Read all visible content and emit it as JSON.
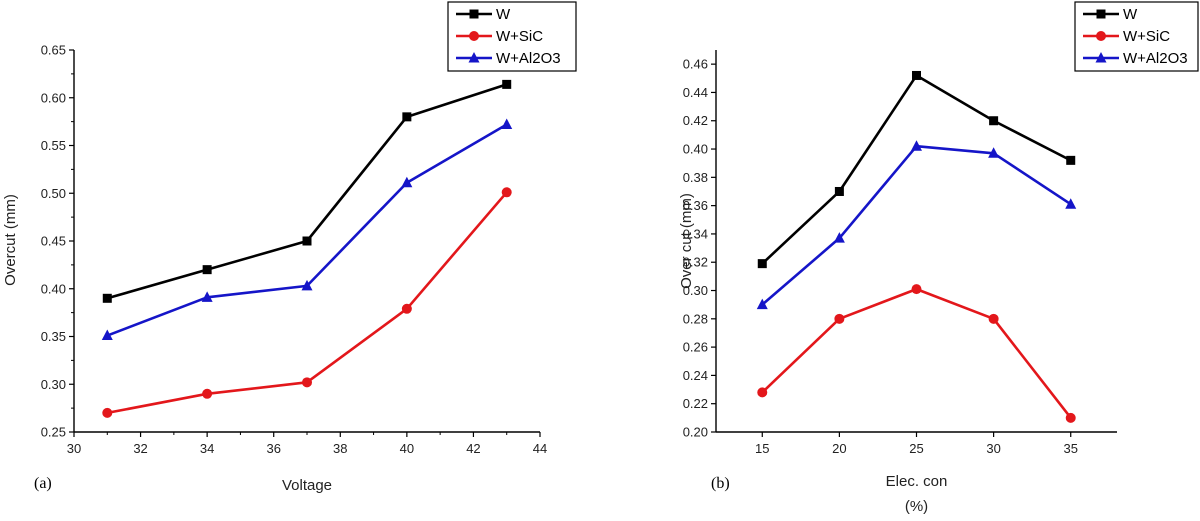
{
  "chart_data": [
    {
      "type": "line",
      "panel_label": "(a)",
      "xlabel": "Voltage",
      "ylabel": "Overcut (mm)",
      "xlim": [
        30,
        44
      ],
      "ylim": [
        0.25,
        0.65
      ],
      "xticks": [
        30,
        32,
        34,
        36,
        38,
        40,
        42,
        44
      ],
      "xtick_labels": [
        "30",
        "32",
        "34",
        "36",
        "38",
        "40",
        "42",
        "44"
      ],
      "yticks": [
        0.25,
        0.3,
        0.35,
        0.4,
        0.45,
        0.5,
        0.55,
        0.6,
        0.65
      ],
      "ytick_labels": [
        "0.25",
        "0.30",
        "0.35",
        "0.40",
        "0.45",
        "0.50",
        "0.55",
        "0.60",
        "0.65"
      ],
      "legend": "top-right",
      "x": [
        31,
        34,
        37,
        40,
        43
      ],
      "series": [
        {
          "name": "W",
          "color": "#000000",
          "marker": "square",
          "values": [
            0.39,
            0.42,
            0.45,
            0.58,
            0.614
          ]
        },
        {
          "name": "W+SiC",
          "color": "#e3171b",
          "marker": "circle",
          "values": [
            0.27,
            0.29,
            0.302,
            0.379,
            0.501
          ]
        },
        {
          "name": "W+Al2O3",
          "color": "#1515c8",
          "marker": "triangle",
          "values": [
            0.351,
            0.391,
            0.403,
            0.511,
            0.572
          ]
        }
      ]
    },
    {
      "type": "line",
      "panel_label": "(b)",
      "xlabel": "Elec. con",
      "xlabel2": "(%)",
      "ylabel": "Over cut (mm)",
      "xlim": [
        12,
        38
      ],
      "ylim": [
        0.2,
        0.47
      ],
      "xticks": [
        15,
        20,
        25,
        30,
        35
      ],
      "xtick_labels": [
        "15",
        "20",
        "25",
        "30",
        "35"
      ],
      "yticks": [
        0.2,
        0.22,
        0.24,
        0.26,
        0.28,
        0.3,
        0.32,
        0.34,
        0.36,
        0.38,
        0.4,
        0.42,
        0.44,
        0.46
      ],
      "ytick_labels": [
        "0.20",
        "0.22",
        "0.24",
        "0.26",
        "0.28",
        "0.30",
        "0.32",
        "0.34",
        "0.36",
        "0.38",
        "0.40",
        "0.42",
        "0.44",
        "0.46"
      ],
      "legend": "top-right",
      "x": [
        15,
        20,
        25,
        30,
        35
      ],
      "series": [
        {
          "name": "W",
          "color": "#000000",
          "marker": "square",
          "values": [
            0.319,
            0.37,
            0.452,
            0.42,
            0.392
          ]
        },
        {
          "name": "W+SiC",
          "color": "#e3171b",
          "marker": "circle",
          "values": [
            0.228,
            0.28,
            0.301,
            0.28,
            0.21
          ]
        },
        {
          "name": "W+Al2O3",
          "color": "#1515c8",
          "marker": "triangle",
          "values": [
            0.29,
            0.337,
            0.402,
            0.397,
            0.361
          ]
        }
      ]
    }
  ]
}
